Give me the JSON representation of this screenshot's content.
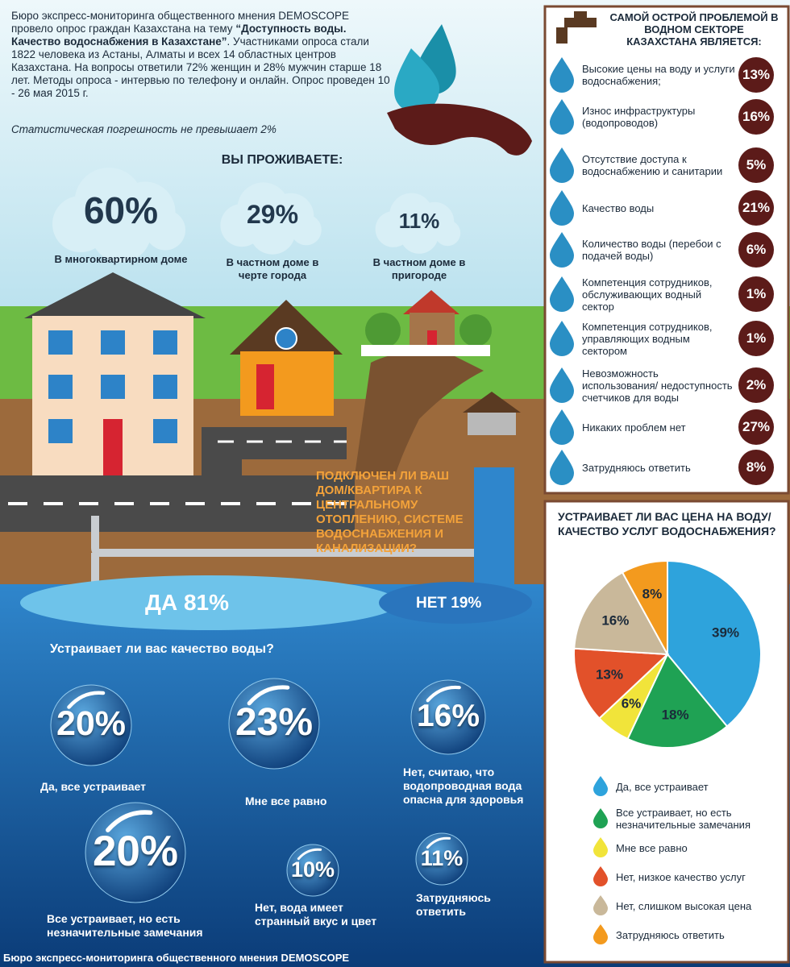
{
  "intro": {
    "lead": "Бюро экспресс-мониторинга общественного мнения DEMOSCOPE провело опрос граждан Казахстана на тему ",
    "topic": "“Доступность воды. Качество водоснабжения в Казахстане”",
    "body": ". Участниками опроса стали 1822 человека из Астаны, Алматы и всех 14 областных центров Казахстана. На вопросы ответили 72% женщин и 28% мужчин старше 18 лет. Методы опроса - интервью по телефону и онлайн. Опрос проведен 10 - 26 мая 2015 г.",
    "note": "Статистическая погрешность не превышает 2%"
  },
  "residence": {
    "title": "ВЫ ПРОЖИВАЕТЕ:",
    "items": [
      {
        "value": "60%",
        "label": "В многоквартирном доме"
      },
      {
        "value": "29%",
        "label": "В частном доме в черте города"
      },
      {
        "value": "11%",
        "label": "В частном доме в пригороде"
      }
    ]
  },
  "connection": {
    "question": "ПОДКЛЮЧЕН ЛИ ВАШ ДОМ/КВАРТИРА К ЦЕНТРАЛЬНОМУ ОТОПЛЕНИЮ, СИСТЕМЕ ВОДОСНАБЖЕНИЯ И КАНАЛИЗАЦИИ?",
    "yes": "ДА 81%",
    "no": "НЕТ 19%"
  },
  "quality": {
    "title": "Устраивает ли вас качество воды?",
    "items": [
      {
        "value": "20%",
        "label": "Да, все устраивает"
      },
      {
        "value": "23%",
        "label": "Мне все равно"
      },
      {
        "value": "16%",
        "label": "Нет, считаю, что водопроводная вода опасна для здоровья"
      },
      {
        "value": "20%",
        "label": "Все устраивает, но есть незначительные замечания"
      },
      {
        "value": "10%",
        "label": "Нет, вода имеет странный вкус и цвет"
      },
      {
        "value": "11%",
        "label": "Затрудняюсь ответить"
      }
    ]
  },
  "problems": {
    "title": "САМОЙ ОСТРОЙ ПРОБЛЕМОЙ В ВОДНОМ СЕКТОРЕ КАЗАХСТАНА ЯВЛЯЕТСЯ:",
    "items": [
      {
        "label": "Высокие цены на воду и услуги водоснабжения;",
        "value": "13%"
      },
      {
        "label": "Износ инфраструктуры (водопроводов)",
        "value": "16%"
      },
      {
        "label": "Отсутствие доступа к водоснабжению и санитарии",
        "value": "5%"
      },
      {
        "label": "Качество воды",
        "value": "21%"
      },
      {
        "label": "Количество воды (перебои с подачей воды)",
        "value": "6%"
      },
      {
        "label": "Компетенция сотрудников, обслуживающих водный сектор",
        "value": "1%"
      },
      {
        "label": "Компетенция сотрудников, управляющих водным сектором",
        "value": "1%"
      },
      {
        "label": "Невозможность использования/ недоступность счетчиков для воды",
        "value": "2%"
      },
      {
        "label": "Никаких проблем нет",
        "value": "27%"
      },
      {
        "label": "Затрудняюсь ответить",
        "value": "8%"
      }
    ]
  },
  "chart_data": {
    "type": "pie",
    "title": "УСТРАИВАЕТ ЛИ ВАС ЦЕНА НА ВОДУ/ КАЧЕСТВО УСЛУГ ВОДОСНАБЖЕНИЯ?",
    "categories": [
      "Да, все устраивает",
      "Все устраивает, но есть незначительные замечания",
      "Мне все равно",
      "Нет, низкое качество услуг",
      "Нет, слишком высокая цена",
      "Затрудняюсь ответить"
    ],
    "values": [
      39,
      18,
      6,
      13,
      16,
      8
    ],
    "value_labels": [
      "39%",
      "18%",
      "6%",
      "13%",
      "16%",
      "8%"
    ],
    "colors": [
      "#2ea3dc",
      "#1fa254",
      "#f1e43a",
      "#e2512a",
      "#c9b89a",
      "#f39a1e"
    ]
  },
  "footer": "Бюро экспресс-мониторинга общественного мнения DEMOSCOPE"
}
